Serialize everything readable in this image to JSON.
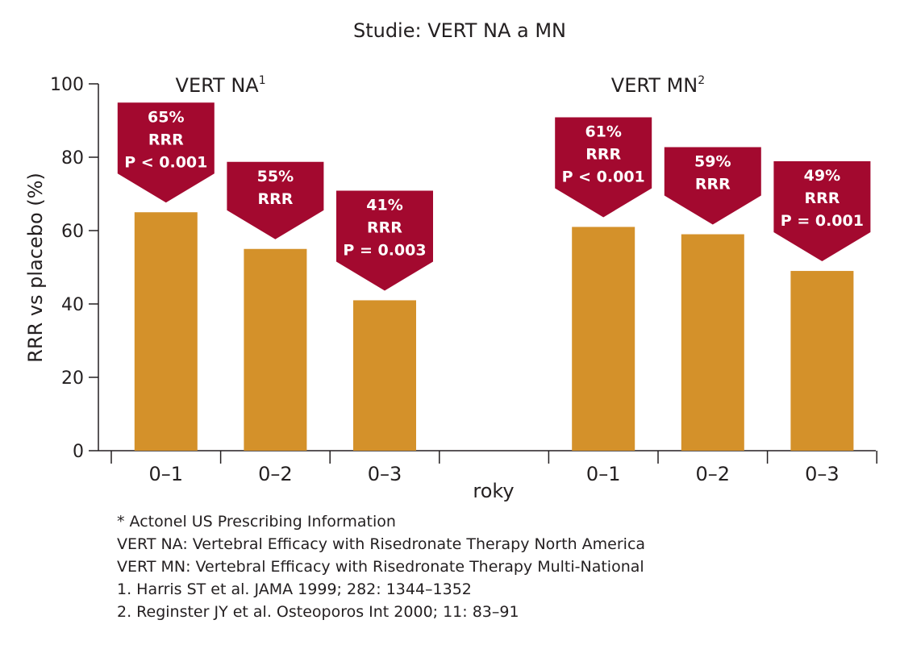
{
  "chart_data": {
    "type": "bar",
    "title": "Studie: VERT NA a MN",
    "ylabel": "RRR vs placebo (%)",
    "xlabel": "roky",
    "ylim": [
      0,
      100
    ],
    "yticks": [
      0,
      20,
      40,
      60,
      80,
      100
    ],
    "groups": [
      {
        "name": "VERT NA",
        "superscript": "1",
        "categories": [
          "0–1",
          "0–2",
          "0–3"
        ],
        "values": [
          65,
          55,
          41
        ],
        "callouts": [
          [
            "65%",
            "RRR",
            "P < 0.001"
          ],
          [
            "55%",
            "RRR"
          ],
          [
            "41%",
            "RRR",
            "P = 0.003"
          ]
        ]
      },
      {
        "name": "VERT MN",
        "superscript": "2",
        "categories": [
          "0–1",
          "0–2",
          "0–3"
        ],
        "values": [
          61,
          59,
          49
        ],
        "callouts": [
          [
            "61%",
            "RRR",
            "P < 0.001"
          ],
          [
            "59%",
            "RRR"
          ],
          [
            "49%",
            "RRR",
            "P = 0.001"
          ]
        ]
      }
    ],
    "colors": {
      "bar": "#d4912a",
      "callout": "#a3092f",
      "axis": "#231f20"
    }
  },
  "footnotes": [
    "* Actonel US Prescribing Information",
    "VERT NA: Vertebral Efficacy with Risedronate Therapy North America",
    "VERT MN: Vertebral Efficacy with Risedronate Therapy Multi-National",
    "1. Harris ST et al. JAMA 1999; 282: 1344–1352",
    "2. Reginster JY et al. Osteoporos Int 2000; 11: 83–91"
  ]
}
